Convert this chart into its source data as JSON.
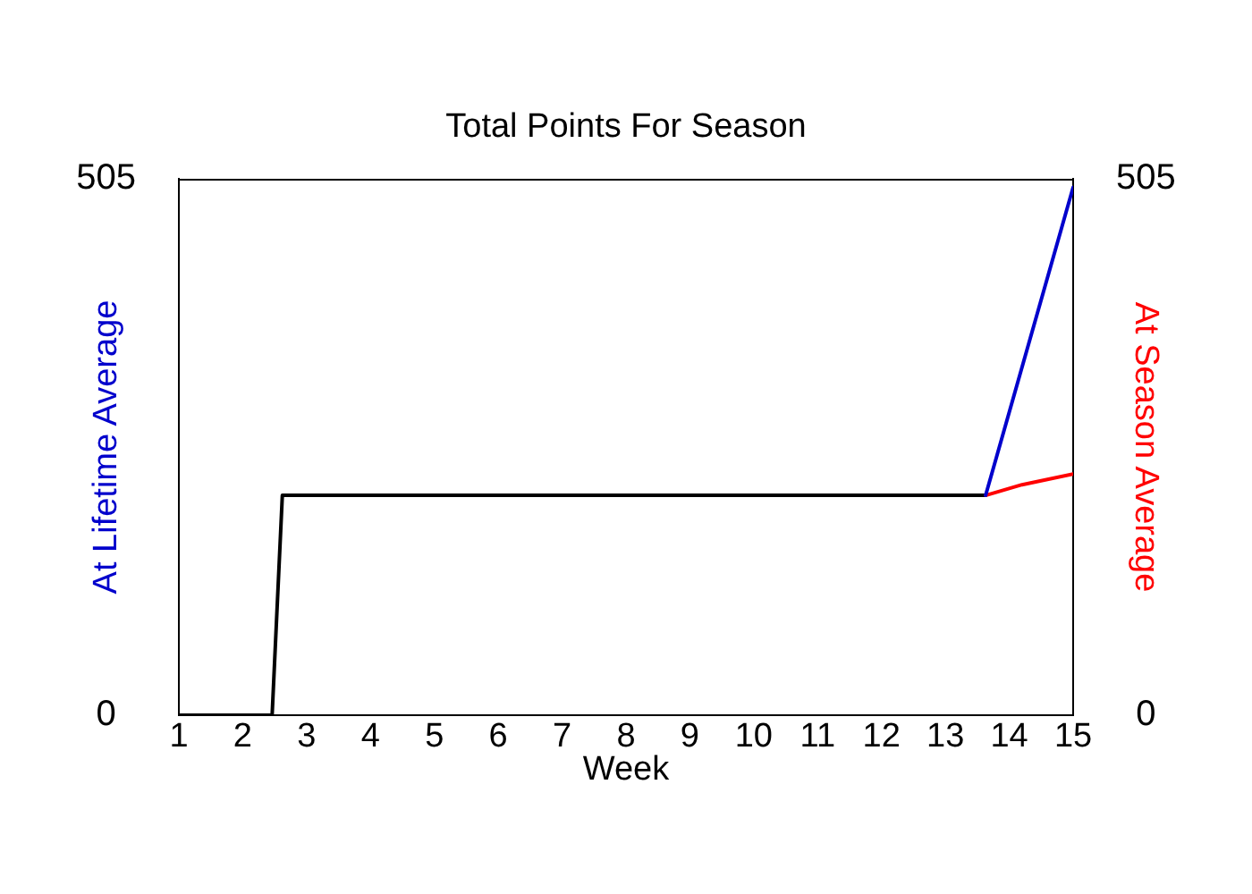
{
  "chart_data": {
    "type": "line",
    "title": "Total Points For Season",
    "xlabel": "Week",
    "ylabel": "At Lifetime Average",
    "y2label": "At Season Average",
    "series": [
      {
        "color": "#0000cc",
        "axis": "y",
        "x": [
          13.63,
          15
        ],
        "values": [
          207,
          497
        ]
      },
      {
        "color": "#ff0000",
        "axis": "y2",
        "x": [
          13.63,
          14.2,
          15
        ],
        "values": [
          207,
          217,
          227
        ]
      },
      {
        "color": "#000000",
        "axis": "y",
        "x": [
          1,
          2.46,
          2.62,
          13.63
        ],
        "values": [
          0,
          0,
          207,
          207
        ]
      }
    ],
    "xlim": [
      1,
      15
    ],
    "xticks": [
      1,
      2,
      3,
      4,
      5,
      6,
      7,
      8,
      9,
      10,
      11,
      12,
      13,
      14,
      15
    ],
    "ylim": [
      0,
      505
    ],
    "yticks": [
      0,
      505
    ],
    "y2lim": [
      0,
      505
    ],
    "y2ticks": [
      0,
      505
    ],
    "grid": false,
    "legend": false,
    "marker": "none"
  }
}
